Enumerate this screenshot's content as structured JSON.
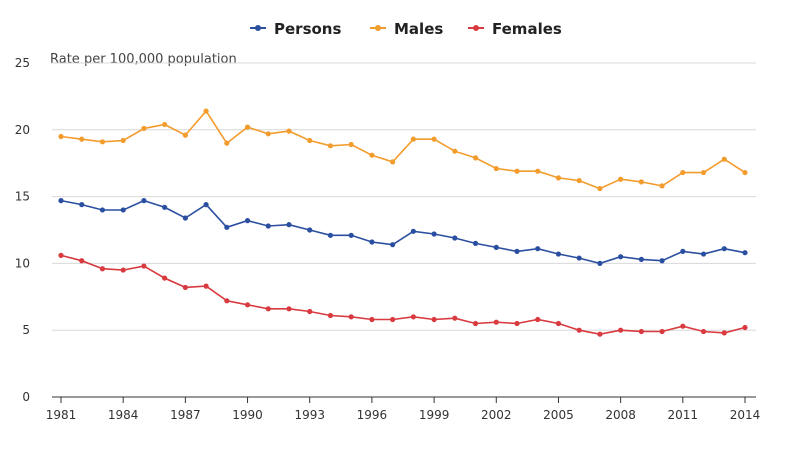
{
  "chart_data": {
    "type": "line",
    "title": "",
    "xlabel": "",
    "ylabel": "Rate per 100,000 population",
    "ylim": [
      0,
      25
    ],
    "y_ticks": [
      0,
      5,
      10,
      15,
      20,
      25
    ],
    "x_ticks": [
      1981,
      1984,
      1987,
      1990,
      1993,
      1996,
      1999,
      2002,
      2005,
      2008,
      2011,
      2014
    ],
    "x_range": [
      1981,
      2014
    ],
    "grid": true,
    "legend_position": "top-center",
    "x": [
      1981,
      1982,
      1983,
      1984,
      1985,
      1986,
      1987,
      1988,
      1989,
      1990,
      1991,
      1992,
      1993,
      1994,
      1995,
      1996,
      1997,
      1998,
      1999,
      2000,
      2001,
      2002,
      2003,
      2004,
      2005,
      2006,
      2007,
      2008,
      2009,
      2010,
      2011,
      2012,
      2013,
      2014
    ],
    "series": [
      {
        "name": "Persons",
        "color": "#2b4fa0",
        "values": [
          14.7,
          14.4,
          14.0,
          14.0,
          14.7,
          14.2,
          13.4,
          14.4,
          12.7,
          13.2,
          12.8,
          12.9,
          12.5,
          12.1,
          12.1,
          11.6,
          11.4,
          12.4,
          12.2,
          11.9,
          11.5,
          11.2,
          10.9,
          11.1,
          10.7,
          10.4,
          10.0,
          10.5,
          10.3,
          10.2,
          10.9,
          10.7,
          11.1,
          10.8
        ]
      },
      {
        "name": "Males",
        "color": "#f39c2e",
        "values": [
          19.5,
          19.3,
          19.1,
          19.2,
          20.1,
          20.4,
          19.6,
          21.4,
          19.0,
          20.2,
          19.7,
          19.9,
          19.2,
          18.8,
          18.9,
          18.1,
          17.6,
          19.3,
          19.3,
          18.4,
          17.9,
          17.1,
          16.9,
          16.9,
          16.4,
          16.2,
          15.6,
          16.3,
          16.1,
          15.8,
          16.8,
          16.8,
          17.8,
          16.8
        ]
      },
      {
        "name": "Females",
        "color": "#d83a3f",
        "values": [
          10.6,
          10.2,
          9.6,
          9.5,
          9.8,
          8.9,
          8.2,
          8.3,
          7.2,
          6.9,
          6.6,
          6.6,
          6.4,
          6.1,
          6.0,
          5.8,
          5.8,
          6.0,
          5.8,
          5.9,
          5.5,
          5.6,
          5.5,
          5.8,
          5.5,
          5.0,
          4.7,
          5.0,
          4.9,
          4.9,
          5.3,
          4.9,
          4.8,
          5.2
        ]
      }
    ]
  }
}
